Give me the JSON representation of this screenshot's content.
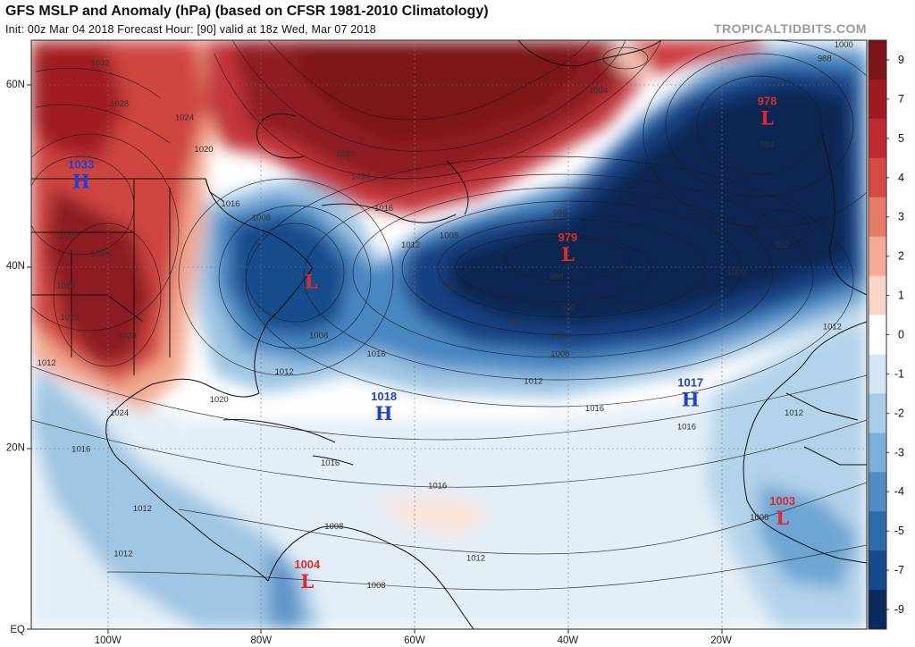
{
  "header": {
    "title": "GFS MSLP and Anomaly (hPa) (based on CFSR 1981-2010 Climatology)",
    "subtitle": "Init: 00z Mar 04 2018   Forecast Hour: [90]   valid at 18z Wed, Mar 07 2018",
    "brand": "TROPICALTIDBITS.COM"
  },
  "map": {
    "lat_labels": [
      "60N",
      "40N",
      "20N",
      "EQ"
    ],
    "lon_labels": [
      "100W",
      "80W",
      "60W",
      "40W",
      "20W"
    ]
  },
  "pressure_centers": [
    {
      "type": "H",
      "value": "1033",
      "color": "#1f3fd8",
      "lon": -103.5,
      "lat": 49.5
    },
    {
      "type": "L",
      "value": "",
      "color": "#e02a2a",
      "lon": -73.5,
      "lat": 38.5
    },
    {
      "type": "L",
      "value": "979",
      "color": "#e02a2a",
      "lon": -40,
      "lat": 41.5
    },
    {
      "type": "L",
      "value": "978",
      "color": "#e02a2a",
      "lon": -14,
      "lat": 56.5
    },
    {
      "type": "H",
      "value": "1018",
      "color": "#1f3fd8",
      "lon": -64,
      "lat": 24
    },
    {
      "type": "H",
      "value": "1017",
      "color": "#1f3fd8",
      "lon": -24,
      "lat": 25.5
    },
    {
      "type": "L",
      "value": "1003",
      "color": "#e02a2a",
      "lon": -12,
      "lat": 12.5
    },
    {
      "type": "L",
      "value": "1004",
      "color": "#e02a2a",
      "lon": -74,
      "lat": 5.5
    }
  ],
  "isobar_labels": [
    {
      "text": "1032",
      "lon": -101,
      "lat": 62
    },
    {
      "text": "1028",
      "lon": -98.5,
      "lat": 57.5
    },
    {
      "text": "1024",
      "lon": -90,
      "lat": 56
    },
    {
      "text": "1020",
      "lon": -87.5,
      "lat": 52.5
    },
    {
      "text": "1028",
      "lon": -69,
      "lat": 52
    },
    {
      "text": "1024",
      "lon": -67,
      "lat": 49.5
    },
    {
      "text": "1016",
      "lon": -84,
      "lat": 46.5
    },
    {
      "text": "1016",
      "lon": -64,
      "lat": 46
    },
    {
      "text": "1008",
      "lon": -80,
      "lat": 45
    },
    {
      "text": "1012",
      "lon": -60.5,
      "lat": 42
    },
    {
      "text": "1008",
      "lon": -55.5,
      "lat": 43
    },
    {
      "text": "1028",
      "lon": -101,
      "lat": 41
    },
    {
      "text": "1024",
      "lon": -105.5,
      "lat": 43
    },
    {
      "text": "1020",
      "lon": -105.5,
      "lat": 37.5
    },
    {
      "text": "1020",
      "lon": -105,
      "lat": 34
    },
    {
      "text": "1028",
      "lon": -97.5,
      "lat": 32
    },
    {
      "text": "1008",
      "lon": -72.5,
      "lat": 32
    },
    {
      "text": "1016",
      "lon": -65,
      "lat": 30
    },
    {
      "text": "1012",
      "lon": -77,
      "lat": 28
    },
    {
      "text": "1012",
      "lon": -108,
      "lat": 29
    },
    {
      "text": "1020",
      "lon": -85.5,
      "lat": 25
    },
    {
      "text": "1024",
      "lon": -98.5,
      "lat": 23.5
    },
    {
      "text": "1016",
      "lon": -103.5,
      "lat": 19.5
    },
    {
      "text": "1016",
      "lon": -71,
      "lat": 18
    },
    {
      "text": "1016",
      "lon": -57,
      "lat": 15.5
    },
    {
      "text": "1012",
      "lon": -95.5,
      "lat": 13
    },
    {
      "text": "1012",
      "lon": -98,
      "lat": 8
    },
    {
      "text": "1008",
      "lon": -70.5,
      "lat": 11
    },
    {
      "text": "1008",
      "lon": -65,
      "lat": 4.5
    },
    {
      "text": "1012",
      "lon": -52,
      "lat": 7.5
    },
    {
      "text": "1004",
      "lon": -36,
      "lat": 59
    },
    {
      "text": "1000",
      "lon": -4,
      "lat": 64
    },
    {
      "text": "988",
      "lon": -6.5,
      "lat": 62.5
    },
    {
      "text": "984",
      "lon": -14,
      "lat": 53
    },
    {
      "text": "996",
      "lon": -41,
      "lat": 45.5
    },
    {
      "text": "992",
      "lon": -42,
      "lat": 44.5
    },
    {
      "text": "992",
      "lon": -55.5,
      "lat": 37.5
    },
    {
      "text": "988",
      "lon": -41.5,
      "lat": 38.5
    },
    {
      "text": "996",
      "lon": -40,
      "lat": 35
    },
    {
      "text": "1000",
      "lon": -47,
      "lat": 33.5
    },
    {
      "text": "1004",
      "lon": -41,
      "lat": 32
    },
    {
      "text": "1008",
      "lon": -41,
      "lat": 30
    },
    {
      "text": "1012",
      "lon": -44.5,
      "lat": 27
    },
    {
      "text": "1016",
      "lon": -36.5,
      "lat": 24
    },
    {
      "text": "1016",
      "lon": -24.5,
      "lat": 22
    },
    {
      "text": "1012",
      "lon": -10.5,
      "lat": 23.5
    },
    {
      "text": "1012",
      "lon": -5.5,
      "lat": 33
    },
    {
      "text": "1000",
      "lon": -18,
      "lat": 39
    },
    {
      "text": "992",
      "lon": -12,
      "lat": 42
    },
    {
      "text": "1008",
      "lon": -15,
      "lat": 12
    }
  ],
  "colorbar": {
    "labels": [
      "9",
      "7",
      "5",
      "4",
      "3",
      "2",
      "1",
      "0",
      "-1",
      "-2",
      "-3",
      "-4",
      "-5",
      "-7",
      "-9"
    ],
    "colors": [
      "#7a1418",
      "#9e1a20",
      "#bd2a2f",
      "#d54a45",
      "#e87b68",
      "#f4aa94",
      "#fbd6c8",
      "#ffffff",
      "#d4e6f3",
      "#a9cde6",
      "#7cb0d8",
      "#4f8dc4",
      "#2c6aac",
      "#154a8c",
      "#082b5c"
    ]
  },
  "colors": {
    "strong_positive": "#8f1a20",
    "mid_positive": "#c9393a",
    "weak_positive": "#f1a48d",
    "faint_positive": "#fcdcd0",
    "neutral": "#ffffff",
    "faint_negative": "#d7e8f4",
    "weak_negative": "#9ec8e4",
    "mid_negative": "#3f7fbf",
    "strong_negative": "#123d7a",
    "deep_negative": "#08254f"
  }
}
